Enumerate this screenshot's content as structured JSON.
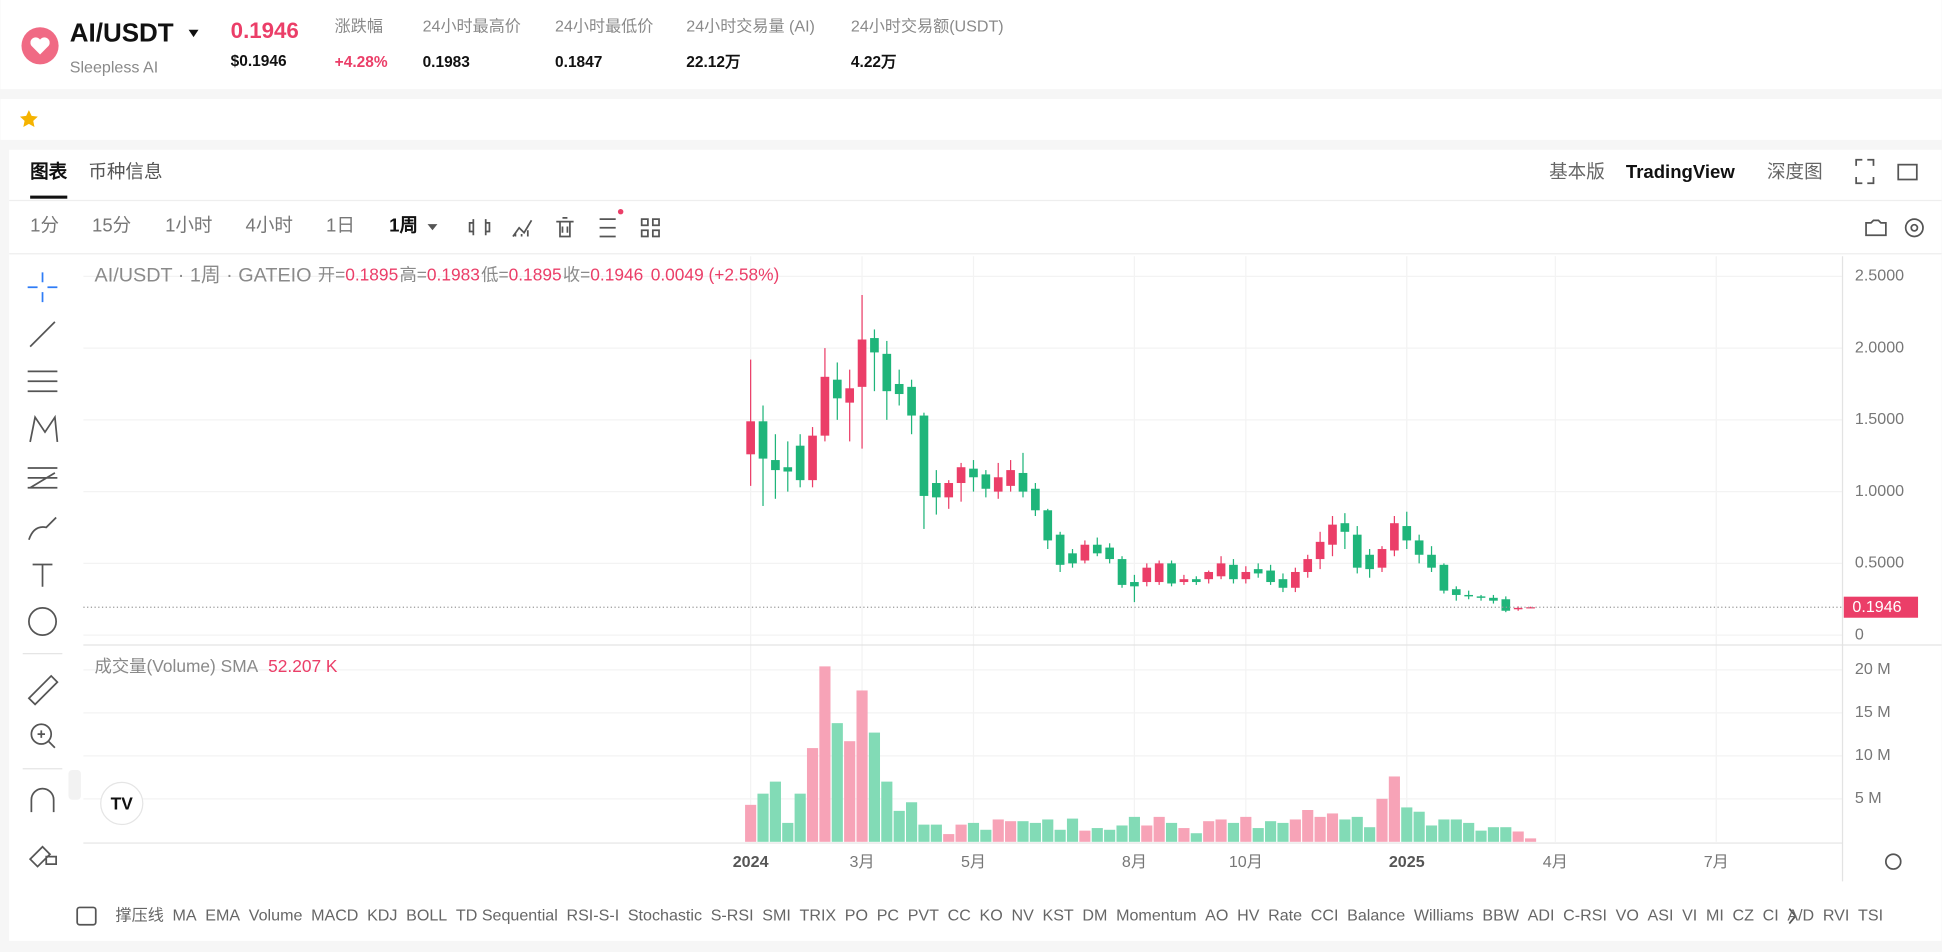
{
  "header": {
    "pair": "AI/USDT",
    "name": "Sleepless AI",
    "price": "0.1946",
    "price_usd": "$0.1946",
    "stats": [
      {
        "label": "涨跌幅",
        "value": "+4.28%"
      },
      {
        "label": "24小时最高价",
        "value": "0.1983"
      },
      {
        "label": "24小时最低价",
        "value": "0.1847"
      },
      {
        "label": "24小时交易量 (AI)",
        "value": "22.12万"
      },
      {
        "label": "24小时交易额(USDT)",
        "value": "4.22万"
      }
    ]
  },
  "tabs": [
    "图表",
    "币种信息"
  ],
  "views": [
    "基本版",
    "TradingView",
    "深度图"
  ],
  "intervals": [
    "1分",
    "15分",
    "1小时",
    "4小时",
    "1日",
    "1周"
  ],
  "legend": {
    "symbol": "AI/USDT · 1周 · GATEIO",
    "items": [
      {
        "label": "开=",
        "value": "0.1895"
      },
      {
        "label": "高=",
        "value": "0.1983"
      },
      {
        "label": "低=",
        "value": "0.1895"
      },
      {
        "label": "收=",
        "value": "0.1946"
      }
    ],
    "change": "0.0049 (+2.58%)"
  },
  "volume_legend": {
    "label": "成交量(Volume) SMA",
    "value": "52.207 K"
  },
  "indicators": [
    "撑压线",
    "MA",
    "EMA",
    "Volume",
    "MACD",
    "KDJ",
    "BOLL",
    "TD Sequential",
    "RSI-S-I",
    "Stochastic",
    "S-RSI",
    "SMI",
    "TRIX",
    "PO",
    "PC",
    "PVT",
    "CC",
    "KO",
    "NV",
    "KST",
    "DM",
    "Momentum",
    "AO",
    "HV",
    "Rate",
    "CCI",
    "Balance",
    "Williams",
    "BBW",
    "ADI",
    "C-RSI",
    "VO",
    "ASI",
    "VI",
    "MI",
    "CZ",
    "CI",
    "A/D",
    "RVI",
    "TSI"
  ],
  "chart_data": {
    "type": "candlestick",
    "up_color": "#eb3e68",
    "down_color": "#1fb57a",
    "volume_up_color": "#f7a3b7",
    "volume_down_color": "#82dbb6",
    "last_price": 0.1946,
    "xlim": [
      -53.9,
      88.2
    ],
    "xticks": [
      {
        "value": 0,
        "label": "2024"
      },
      {
        "value": 9,
        "label": "3月"
      },
      {
        "value": 18,
        "label": "5月"
      },
      {
        "value": 31,
        "label": "8月"
      },
      {
        "value": 40,
        "label": "10月"
      },
      {
        "value": 53,
        "label": "2025"
      },
      {
        "value": 65,
        "label": "4月"
      },
      {
        "value": 78,
        "label": "7月"
      }
    ],
    "ylim": [
      -0.06,
      2.64
    ],
    "yticks": [
      0,
      {
        "value": 0.5,
        "label": "0.5000"
      },
      {
        "value": 1,
        "label": "1.0000"
      },
      {
        "value": 1.5,
        "label": "1.5000"
      },
      {
        "value": 2,
        "label": "2.0000"
      },
      {
        "value": 2.5,
        "label": "2.5000"
      }
    ],
    "y2lim": [
      0,
      22600000
    ],
    "y2ticks": [
      {
        "value": 5000000,
        "label": "5 M"
      },
      {
        "value": 10000000,
        "label": "10 M"
      },
      {
        "value": 15000000,
        "label": "15 M"
      },
      {
        "value": 20000000,
        "label": "20 M"
      }
    ],
    "open": [
      1.26,
      1.49,
      1.22,
      1.17,
      1.32,
      1.08,
      1.39,
      1.78,
      1.62,
      1.73,
      2.07,
      1.96,
      1.75,
      1.73,
      1.53,
      1.06,
      0.96,
      1.06,
      1.16,
      1.12,
      1.0,
      1.04,
      1.13,
      1.02,
      0.87,
      0.7,
      0.57,
      0.52,
      0.63,
      0.61,
      0.53,
      0.37,
      0.37,
      0.37,
      0.5,
      0.37,
      0.39,
      0.39,
      0.41,
      0.49,
      0.39,
      0.46,
      0.45,
      0.39,
      0.33,
      0.44,
      0.53,
      0.63,
      0.78,
      0.7,
      0.56,
      0.47,
      0.59,
      0.76,
      0.66,
      0.56,
      0.49,
      0.32,
      0.28,
      0.27,
      0.26,
      0.25,
      0.18,
      0.1895
    ],
    "high": [
      1.92,
      1.6,
      1.4,
      1.35,
      1.4,
      1.45,
      2.0,
      1.9,
      1.85,
      2.37,
      2.13,
      2.05,
      1.85,
      1.78,
      1.55,
      1.15,
      1.08,
      1.2,
      1.22,
      1.15,
      1.2,
      1.22,
      1.27,
      1.06,
      0.88,
      0.72,
      0.6,
      0.66,
      0.68,
      0.64,
      0.55,
      0.42,
      0.5,
      0.52,
      0.52,
      0.42,
      0.41,
      0.45,
      0.55,
      0.53,
      0.48,
      0.5,
      0.49,
      0.43,
      0.47,
      0.56,
      0.72,
      0.83,
      0.85,
      0.76,
      0.6,
      0.62,
      0.83,
      0.86,
      0.7,
      0.62,
      0.5,
      0.34,
      0.31,
      0.28,
      0.28,
      0.27,
      0.2,
      0.1983
    ],
    "low": [
      1.04,
      0.9,
      0.95,
      1.0,
      1.03,
      1.03,
      1.35,
      1.5,
      1.35,
      1.3,
      1.7,
      1.5,
      1.6,
      1.4,
      0.74,
      0.84,
      0.88,
      0.93,
      1.0,
      0.96,
      0.95,
      1.0,
      0.96,
      0.83,
      0.6,
      0.44,
      0.47,
      0.5,
      0.55,
      0.5,
      0.33,
      0.23,
      0.34,
      0.35,
      0.34,
      0.35,
      0.35,
      0.36,
      0.39,
      0.36,
      0.36,
      0.4,
      0.35,
      0.3,
      0.3,
      0.4,
      0.46,
      0.55,
      0.6,
      0.43,
      0.4,
      0.44,
      0.55,
      0.6,
      0.5,
      0.44,
      0.29,
      0.24,
      0.25,
      0.24,
      0.22,
      0.16,
      0.17,
      0.1895
    ],
    "close": [
      1.49,
      1.23,
      1.15,
      1.14,
      1.08,
      1.39,
      1.8,
      1.65,
      1.72,
      2.06,
      1.97,
      1.7,
      1.68,
      1.53,
      0.97,
      0.96,
      1.06,
      1.17,
      1.1,
      1.02,
      1.1,
      1.15,
      1.0,
      0.87,
      0.66,
      0.49,
      0.5,
      0.63,
      0.57,
      0.53,
      0.35,
      0.34,
      0.47,
      0.5,
      0.36,
      0.39,
      0.37,
      0.44,
      0.5,
      0.39,
      0.44,
      0.43,
      0.37,
      0.33,
      0.44,
      0.53,
      0.65,
      0.77,
      0.72,
      0.47,
      0.46,
      0.6,
      0.78,
      0.66,
      0.56,
      0.47,
      0.31,
      0.28,
      0.27,
      0.26,
      0.24,
      0.17,
      0.19,
      0.1946
    ],
    "volume": [
      4300000,
      5600000,
      7000000,
      2200000,
      5600000,
      10900000,
      20400000,
      13800000,
      11700000,
      17600000,
      12700000,
      7000000,
      3600000,
      4600000,
      2000000,
      2000000,
      900000,
      2000000,
      2200000,
      1400000,
      2600000,
      2400000,
      2400000,
      2200000,
      2600000,
      1400000,
      2700000,
      1300000,
      1600000,
      1400000,
      1900000,
      2900000,
      1900000,
      2900000,
      2200000,
      1600000,
      1000000,
      2400000,
      2600000,
      2200000,
      2900000,
      1600000,
      2400000,
      2200000,
      2600000,
      3700000,
      2900000,
      3300000,
      2600000,
      2900000,
      1700000,
      5000000,
      7600000,
      4000000,
      3500000,
      1900000,
      2600000,
      2600000,
      2200000,
      1300000,
      1700000,
      1700000,
      1200000,
      400000
    ]
  }
}
